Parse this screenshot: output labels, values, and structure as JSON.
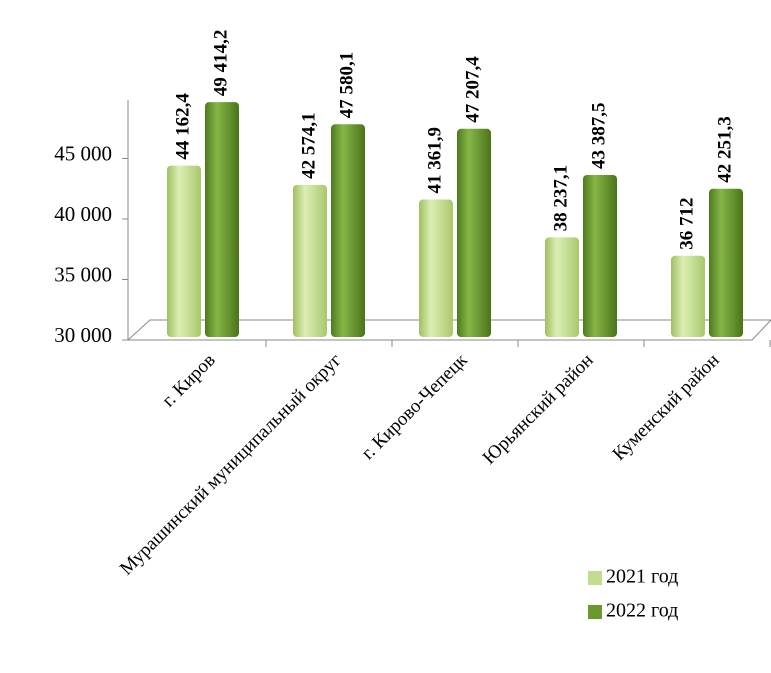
{
  "chart_data": {
    "type": "bar",
    "categories": [
      "г. Киров",
      "Мурашинский муниципальный округ",
      "г. Кирово-Чепецк",
      "Юрьянский район",
      "Куменский район"
    ],
    "series": [
      {
        "name": "2021 год",
        "color": "#c3dd8f",
        "values": [
          44162.4,
          42574.1,
          41361.9,
          38237.1,
          36712
        ],
        "value_labels": [
          "44 162,4",
          "42 574,1",
          "41 361,9",
          "38 237,1",
          "36 712"
        ]
      },
      {
        "name": "2022 год",
        "color": "#6a9a2f",
        "values": [
          49414.2,
          47580.1,
          47207.4,
          43387.5,
          42251.3
        ],
        "value_labels": [
          "49 414,2",
          "47 580,1",
          "47 207,4",
          "43 387,5",
          "42 251,3"
        ]
      }
    ],
    "ylim": [
      30000,
      50000
    ],
    "yticks": [
      {
        "value": 30000,
        "label": "30 000"
      },
      {
        "value": 35000,
        "label": "35 000"
      },
      {
        "value": 40000,
        "label": "40 000"
      },
      {
        "value": 45000,
        "label": "45 000"
      }
    ],
    "legend": "bottom-right"
  }
}
